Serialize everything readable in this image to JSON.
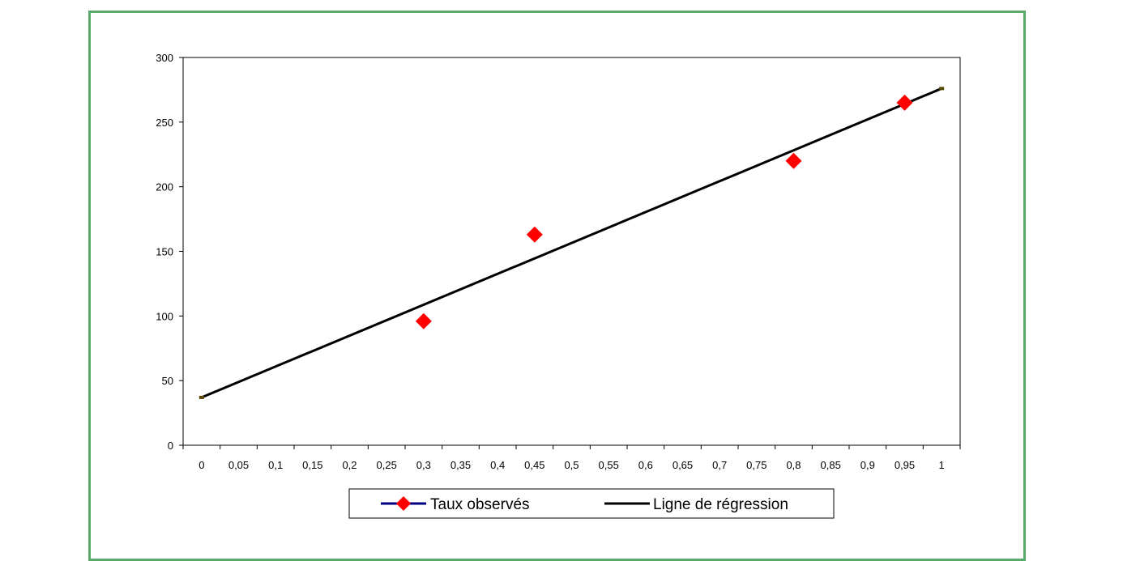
{
  "chart_data": {
    "type": "scatter",
    "title": "",
    "xlabel": "",
    "ylabel": "",
    "xlim": [
      -0.025,
      1.025
    ],
    "ylim": [
      0,
      300
    ],
    "x_ticks": [
      "0",
      "0,05",
      "0,1",
      "0,15",
      "0,2",
      "0,25",
      "0,3",
      "0,35",
      "0,4",
      "0,45",
      "0,5",
      "0,55",
      "0,6",
      "0,65",
      "0,7",
      "0,75",
      "0,8",
      "0,85",
      "0,9",
      "0,95",
      "1"
    ],
    "y_ticks": [
      "0",
      "50",
      "100",
      "150",
      "200",
      "250",
      "300"
    ],
    "grid": false,
    "legend_position": "bottom",
    "series": [
      {
        "name": "Taux observés",
        "kind": "markers",
        "marker": "diamond",
        "color": "#ff0000",
        "legend_line_color": "#000080",
        "points": [
          {
            "x": 0.3,
            "y": 96
          },
          {
            "x": 0.45,
            "y": 163
          },
          {
            "x": 0.8,
            "y": 220
          },
          {
            "x": 0.95,
            "y": 265
          }
        ]
      },
      {
        "name": "Ligne de régression",
        "kind": "line",
        "color": "#000000",
        "points": [
          {
            "x": 0,
            "y": 37
          },
          {
            "x": 1,
            "y": 276
          }
        ]
      }
    ]
  }
}
